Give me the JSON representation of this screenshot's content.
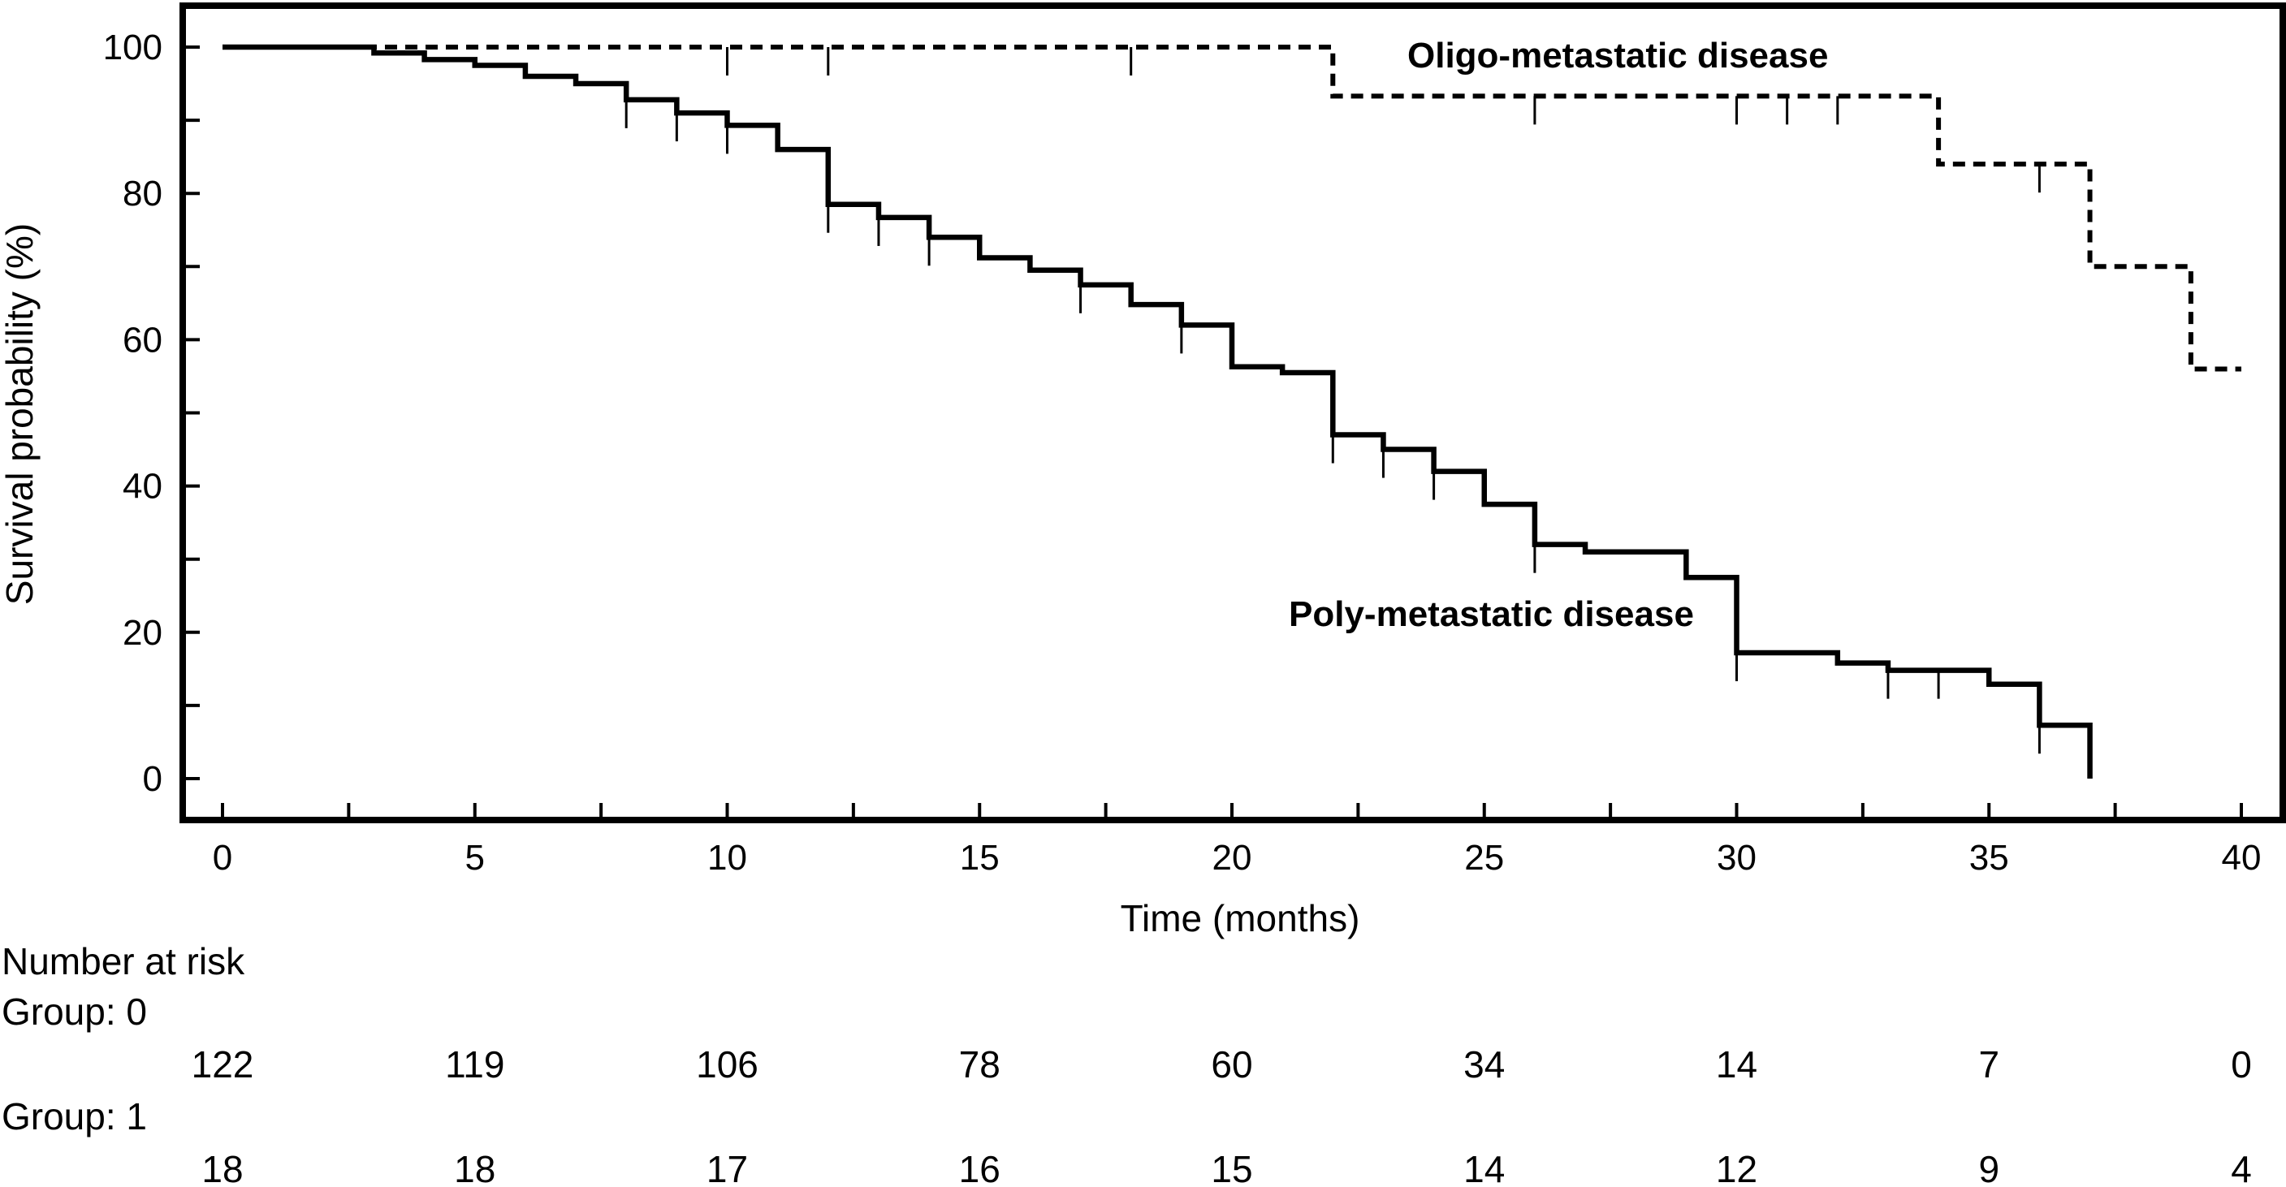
{
  "chart_data": {
    "type": "line",
    "title": "",
    "xlabel": "Time (months)",
    "ylabel": "Survival probability (%)",
    "xlim": [
      -1.5,
      41.5
    ],
    "ylim": [
      -6,
      106
    ],
    "grid": false,
    "x_ticks": [
      0,
      5,
      10,
      15,
      20,
      25,
      30,
      35,
      40
    ],
    "x_minor_ticks": [
      2.5,
      7.5,
      12.5,
      17.5,
      22.5,
      27.5,
      32.5,
      37.5
    ],
    "y_ticks": [
      0,
      20,
      40,
      60,
      80,
      100
    ],
    "y_minor_ticks": [
      10,
      30,
      50,
      70,
      90
    ],
    "series": [
      {
        "name": "Poly-metastatic disease",
        "style": "solid",
        "steps": [
          [
            0,
            100
          ],
          [
            3,
            99.2
          ],
          [
            4,
            98.3
          ],
          [
            5,
            97.5
          ],
          [
            6,
            96
          ],
          [
            7,
            95
          ],
          [
            8,
            92.8
          ],
          [
            9,
            91
          ],
          [
            10,
            89.3
          ],
          [
            11,
            86
          ],
          [
            12,
            78.5
          ],
          [
            13,
            76.7
          ],
          [
            14,
            74
          ],
          [
            15,
            71.2
          ],
          [
            16,
            69.5
          ],
          [
            17,
            67.5
          ],
          [
            18,
            64.8
          ],
          [
            19,
            62
          ],
          [
            20,
            56.3
          ],
          [
            21,
            55.5
          ],
          [
            22,
            47
          ],
          [
            23,
            45
          ],
          [
            24,
            42
          ],
          [
            25,
            37.5
          ],
          [
            26,
            32
          ],
          [
            27,
            31
          ],
          [
            29,
            27.5
          ],
          [
            30,
            17.2
          ],
          [
            32,
            15.8
          ],
          [
            33,
            14.8
          ],
          [
            35,
            12.9
          ],
          [
            36,
            7.3
          ],
          [
            37,
            0
          ]
        ],
        "censored": [
          [
            8,
            92.8
          ],
          [
            9,
            91
          ],
          [
            10,
            89.3
          ],
          [
            12,
            78.5
          ],
          [
            13,
            76.7
          ],
          [
            14,
            74
          ],
          [
            17,
            67.5
          ],
          [
            19,
            62
          ],
          [
            22,
            47
          ],
          [
            23,
            45
          ],
          [
            24,
            42
          ],
          [
            26,
            32
          ],
          [
            30,
            17.2
          ],
          [
            33,
            14.8
          ],
          [
            34,
            14.8
          ],
          [
            36,
            7.3
          ]
        ],
        "label_text": "Poly-metastatic disease"
      },
      {
        "name": "Oligo-metastatic disease",
        "style": "dashed",
        "steps": [
          [
            0,
            100
          ],
          [
            22,
            93.3
          ],
          [
            34,
            84
          ],
          [
            37,
            70
          ],
          [
            39,
            56
          ],
          [
            40,
            56
          ]
        ],
        "censored": [
          [
            10,
            100
          ],
          [
            12,
            100
          ],
          [
            18,
            100
          ],
          [
            26,
            93.3
          ],
          [
            30,
            93.3
          ],
          [
            31,
            93.3
          ],
          [
            32,
            93.3
          ],
          [
            36,
            84
          ]
        ],
        "label_text": "Oligo-metastatic disease"
      }
    ]
  },
  "risk_table": {
    "title": "Number at risk",
    "times": [
      0,
      5,
      10,
      15,
      20,
      25,
      30,
      35,
      40
    ],
    "groups": [
      {
        "label": "Group: 0",
        "values": [
          "122",
          "119",
          "106",
          "78",
          "60",
          "34",
          "14",
          "7",
          "0"
        ]
      },
      {
        "label": "Group: 1",
        "values": [
          "18",
          "18",
          "17",
          "16",
          "15",
          "14",
          "12",
          "9",
          "4"
        ]
      }
    ]
  }
}
